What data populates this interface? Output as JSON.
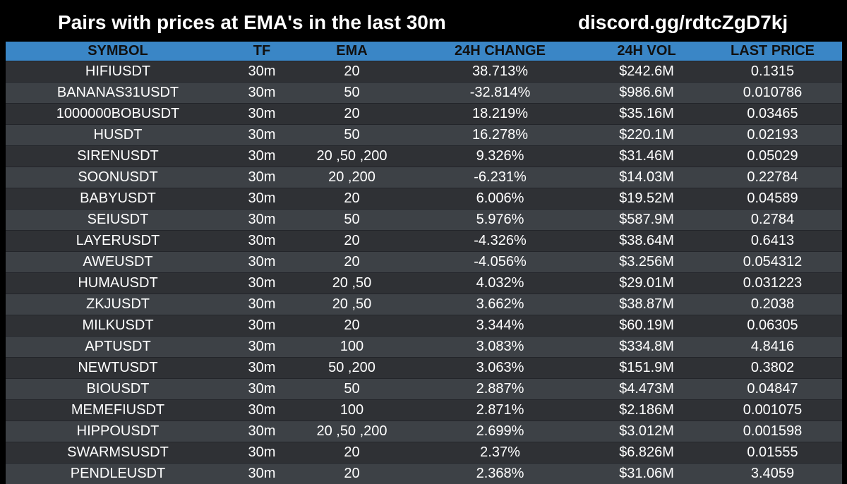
{
  "header": {
    "title": "Pairs with prices at EMA's in the last 30m",
    "link": "discord.gg/rdtcZgD7kj"
  },
  "table": {
    "columns": [
      "SYMBOL",
      "TF",
      "EMA",
      "24H CHANGE",
      "24H VOL",
      "LAST PRICE"
    ],
    "rows": [
      {
        "symbol": "HIFIUSDT",
        "tf": "30m",
        "ema": "20",
        "change": "38.713%",
        "vol": "$242.6M",
        "price": "0.1315"
      },
      {
        "symbol": "BANANAS31USDT",
        "tf": "30m",
        "ema": "50",
        "change": "-32.814%",
        "vol": "$986.6M",
        "price": "0.010786"
      },
      {
        "symbol": "1000000BOBUSDT",
        "tf": "30m",
        "ema": "20",
        "change": "18.219%",
        "vol": "$35.16M",
        "price": "0.03465"
      },
      {
        "symbol": "HUSDT",
        "tf": "30m",
        "ema": "50",
        "change": "16.278%",
        "vol": "$220.1M",
        "price": "0.02193"
      },
      {
        "symbol": "SIRENUSDT",
        "tf": "30m",
        "ema": "20 ,50 ,200",
        "change": "9.326%",
        "vol": "$31.46M",
        "price": "0.05029"
      },
      {
        "symbol": "SOONUSDT",
        "tf": "30m",
        "ema": "20 ,200",
        "change": "-6.231%",
        "vol": "$14.03M",
        "price": "0.22784"
      },
      {
        "symbol": "BABYUSDT",
        "tf": "30m",
        "ema": "20",
        "change": "6.006%",
        "vol": "$19.52M",
        "price": "0.04589"
      },
      {
        "symbol": "SEIUSDT",
        "tf": "30m",
        "ema": "50",
        "change": "5.976%",
        "vol": "$587.9M",
        "price": "0.2784"
      },
      {
        "symbol": "LAYERUSDT",
        "tf": "30m",
        "ema": "20",
        "change": "-4.326%",
        "vol": "$38.64M",
        "price": "0.6413"
      },
      {
        "symbol": "AWEUSDT",
        "tf": "30m",
        "ema": "20",
        "change": "-4.056%",
        "vol": "$3.256M",
        "price": "0.054312"
      },
      {
        "symbol": "HUMAUSDT",
        "tf": "30m",
        "ema": "20 ,50",
        "change": "4.032%",
        "vol": "$29.01M",
        "price": "0.031223"
      },
      {
        "symbol": "ZKJUSDT",
        "tf": "30m",
        "ema": "20 ,50",
        "change": "3.662%",
        "vol": "$38.87M",
        "price": "0.2038"
      },
      {
        "symbol": "MILKUSDT",
        "tf": "30m",
        "ema": "20",
        "change": "3.344%",
        "vol": "$60.19M",
        "price": "0.06305"
      },
      {
        "symbol": "APTUSDT",
        "tf": "30m",
        "ema": "100",
        "change": "3.083%",
        "vol": "$334.8M",
        "price": "4.8416"
      },
      {
        "symbol": "NEWTUSDT",
        "tf": "30m",
        "ema": "50 ,200",
        "change": "3.063%",
        "vol": "$151.9M",
        "price": "0.3802"
      },
      {
        "symbol": "BIOUSDT",
        "tf": "30m",
        "ema": "50",
        "change": "2.887%",
        "vol": "$4.473M",
        "price": "0.04847"
      },
      {
        "symbol": "MEMEFIUSDT",
        "tf": "30m",
        "ema": "100",
        "change": "2.871%",
        "vol": "$2.186M",
        "price": "0.001075"
      },
      {
        "symbol": "HIPPOUSDT",
        "tf": "30m",
        "ema": "20 ,50 ,200",
        "change": "2.699%",
        "vol": "$3.012M",
        "price": "0.001598"
      },
      {
        "symbol": "SWARMSUSDT",
        "tf": "30m",
        "ema": "20",
        "change": "2.37%",
        "vol": "$6.826M",
        "price": "0.01555"
      },
      {
        "symbol": "PENDLEUSDT",
        "tf": "30m",
        "ema": "20",
        "change": "2.368%",
        "vol": "$31.06M",
        "price": "3.4059"
      }
    ]
  },
  "colors": {
    "background": "#000000",
    "header_row": "#3a86c6",
    "row_odd": "#2f3135",
    "row_even": "#3d4146",
    "text": "#ffffff",
    "header_text": "#111111"
  }
}
